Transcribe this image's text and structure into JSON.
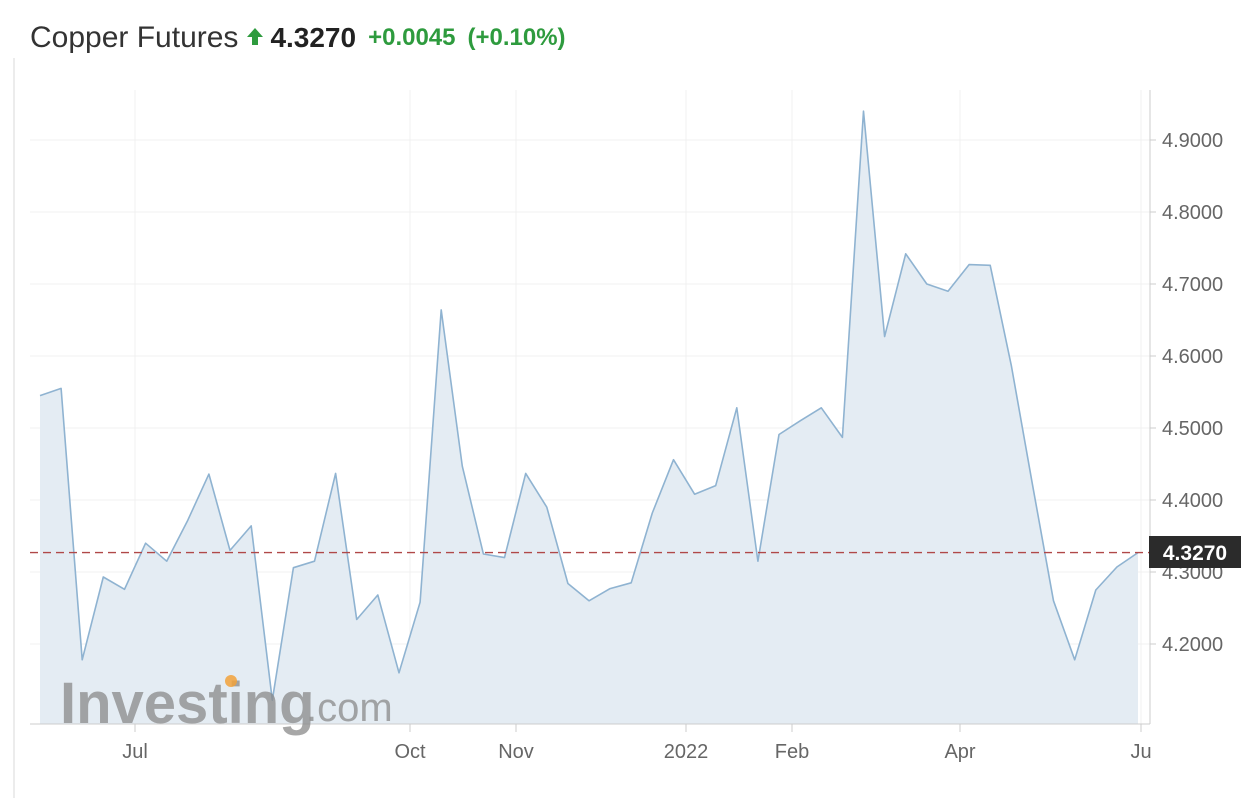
{
  "header": {
    "title": "Copper Futures",
    "price": "4.3270",
    "change": "+0.0045",
    "change_pct": "(+0.10%)",
    "direction_icon": "arrow-up-icon",
    "up_color": "#2e9b3e"
  },
  "watermark": {
    "brand": "Investing",
    "suffix": ".com"
  },
  "price_label": "4.3270",
  "chart_data": {
    "type": "area",
    "title": "Copper Futures",
    "xlabel": "",
    "ylabel": "",
    "x_tick_labels": [
      "Jul",
      "Oct",
      "Nov",
      "2022",
      "Feb",
      "Apr",
      "Ju"
    ],
    "y_tick_labels": [
      "4.2000",
      "4.3000",
      "4.4000",
      "4.5000",
      "4.6000",
      "4.7000",
      "4.8000",
      "4.9000"
    ],
    "ylim": [
      4.08,
      4.97
    ],
    "grid": true,
    "line_color": "#8fb3d1",
    "fill_color": "#e4ecf3",
    "current_value": 4.327,
    "current_line_color": "#b04848",
    "series": [
      {
        "values": [
          4.545,
          4.555,
          4.178,
          4.293,
          4.276,
          4.34,
          4.315,
          4.372,
          4.436,
          4.33,
          4.364,
          4.122,
          4.306,
          4.315,
          4.437,
          4.234,
          4.268,
          4.16,
          4.258,
          4.664,
          4.447,
          4.325,
          4.32,
          4.437,
          4.39,
          4.284,
          4.26,
          4.277,
          4.285,
          4.382,
          4.456,
          4.408,
          4.42,
          4.528,
          4.315,
          4.491,
          4.51,
          4.528,
          4.487,
          4.94,
          4.627,
          4.742,
          4.7,
          4.69,
          4.727,
          4.726,
          4.587,
          4.422,
          4.26,
          4.178,
          4.275,
          4.307,
          4.327
        ]
      }
    ]
  }
}
